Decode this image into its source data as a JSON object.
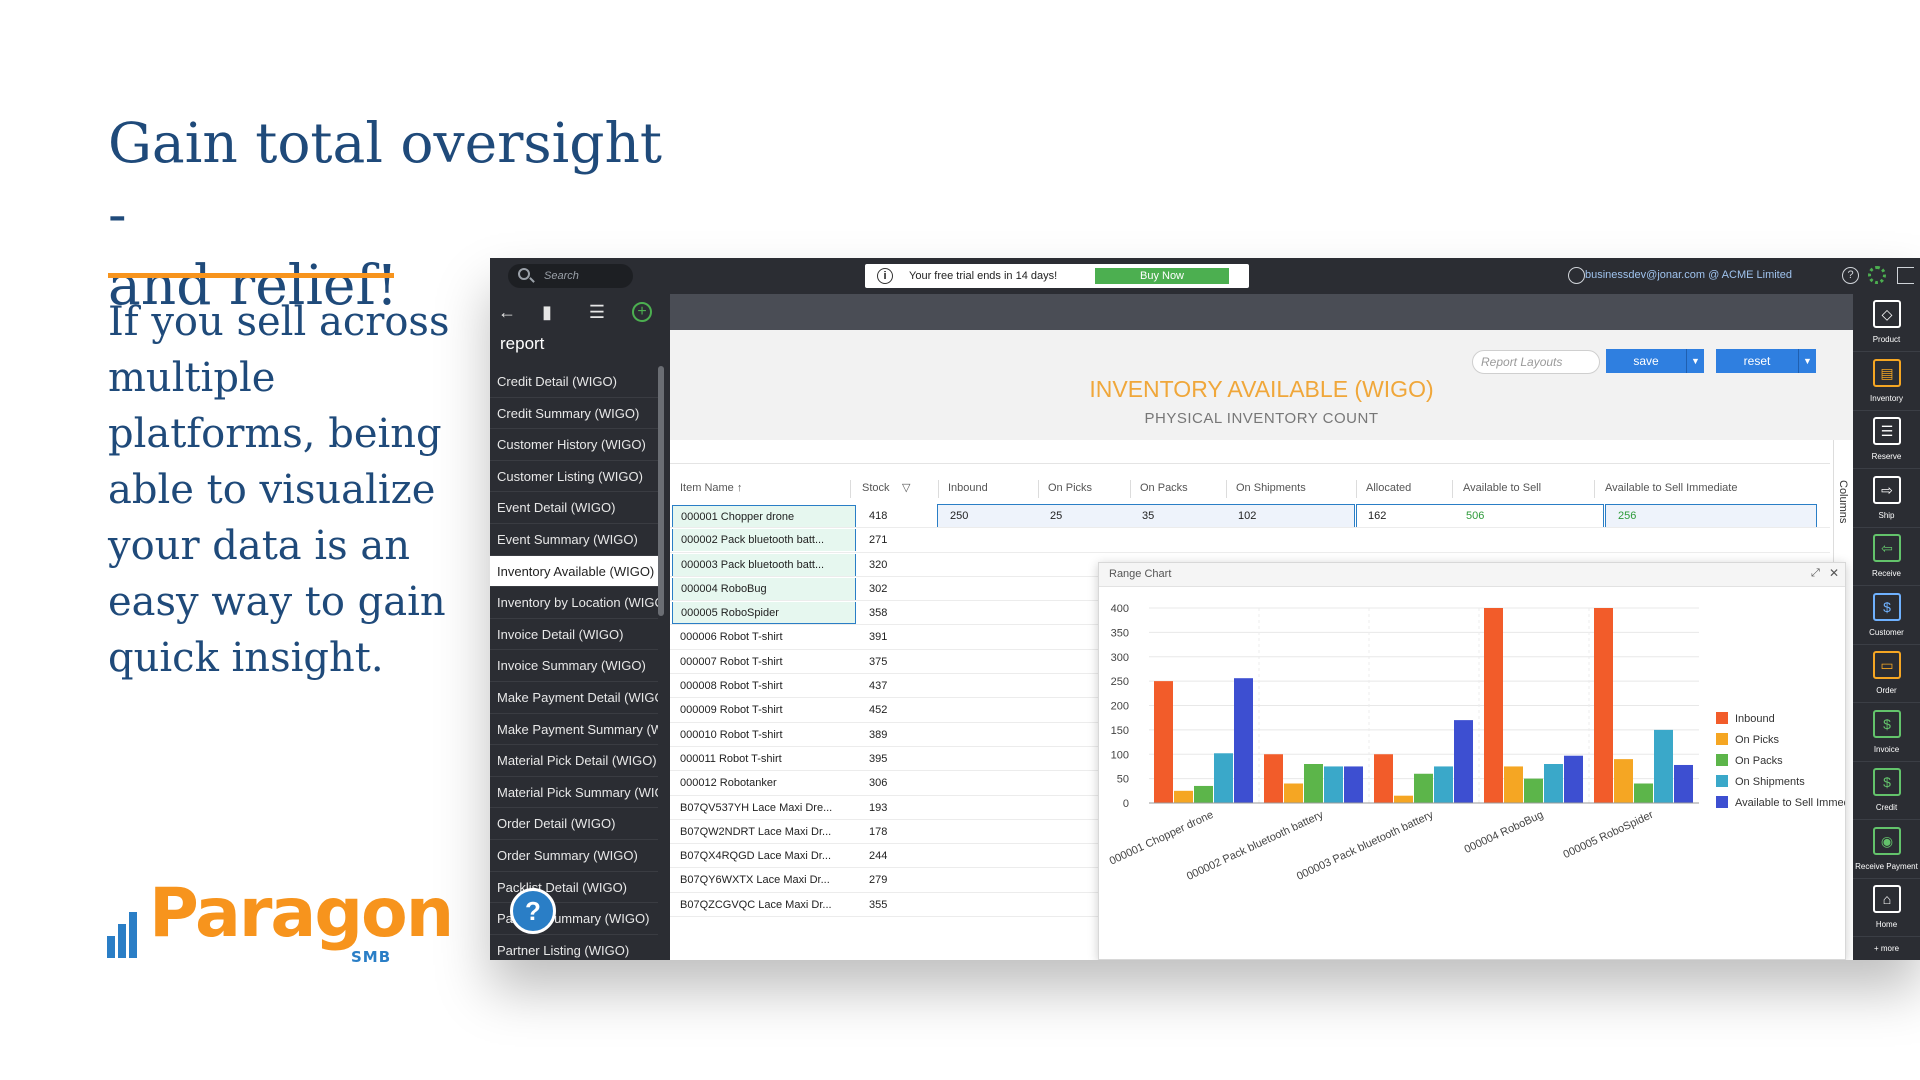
{
  "marketing": {
    "headline_line1": "Gain total oversight -",
    "headline_line2": "and relief!",
    "body": "If you sell across multiple platforms, being able to visualize your data is an easy way to gain quick insight.",
    "logo_text": "Paragon",
    "logo_sub": "SMB"
  },
  "topbar": {
    "search_placeholder": "Search",
    "trial_message": "Your free trial ends in 14 days!",
    "buy_label": "Buy Now",
    "user": "businessdev@jonar.com @ ACME Limited"
  },
  "sidebar": {
    "title": "report",
    "items": [
      {
        "label": "Credit Detail (WIGO)"
      },
      {
        "label": "Credit Summary (WIGO)"
      },
      {
        "label": "Customer History (WIGO)"
      },
      {
        "label": "Customer Listing (WIGO)"
      },
      {
        "label": "Event Detail (WIGO)"
      },
      {
        "label": "Event Summary (WIGO)"
      },
      {
        "label": "Inventory Available (WIGO)"
      },
      {
        "label": "Inventory by Location (WIGO)"
      },
      {
        "label": "Invoice Detail (WIGO)"
      },
      {
        "label": "Invoice Summary (WIGO)"
      },
      {
        "label": "Make Payment Detail (WIGO)"
      },
      {
        "label": "Make Payment Summary (WIGO)"
      },
      {
        "label": "Material Pick Detail (WIGO)"
      },
      {
        "label": "Material Pick Summary (WIGO)"
      },
      {
        "label": "Order Detail (WIGO)"
      },
      {
        "label": "Order Summary (WIGO)"
      },
      {
        "label": "Packlist Detail (WIGO)"
      },
      {
        "label": "Packlist Summary (WIGO)"
      },
      {
        "label": "Partner Listing (WIGO)"
      }
    ]
  },
  "report": {
    "layouts_label": "Report Layouts",
    "save_label": "save",
    "reset_label": "reset",
    "title": "INVENTORY AVAILABLE (WIGO)",
    "subtitle": "PHYSICAL INVENTORY COUNT",
    "columns_label": "Columns",
    "headers": {
      "item": "Item Name ↑",
      "stock": "Stock",
      "inbound": "Inbound",
      "on_picks": "On Picks",
      "on_packs": "On Packs",
      "on_shipments": "On Shipments",
      "allocated": "Allocated",
      "available": "Available to Sell",
      "available_immediate": "Available to Sell Immediate"
    },
    "first_row_detail": {
      "inbound": "250",
      "on_picks": "25",
      "on_packs": "35",
      "on_shipments": "102",
      "allocated": "162",
      "available": "506",
      "available_immediate": "256"
    },
    "rows": [
      {
        "name": "000001 Chopper drone",
        "stock": "418"
      },
      {
        "name": "000002 Pack bluetooth batt...",
        "stock": "271"
      },
      {
        "name": "000003 Pack bluetooth batt...",
        "stock": "320"
      },
      {
        "name": "000004 RoboBug",
        "stock": "302"
      },
      {
        "name": "000005 RoboSpider",
        "stock": "358"
      },
      {
        "name": "000006 Robot T-shirt",
        "stock": "391"
      },
      {
        "name": "000007 Robot T-shirt",
        "stock": "375"
      },
      {
        "name": "000008 Robot T-shirt",
        "stock": "437"
      },
      {
        "name": "000009 Robot T-shirt",
        "stock": "452"
      },
      {
        "name": "000010 Robot T-shirt",
        "stock": "389"
      },
      {
        "name": "000011 Robot T-shirt",
        "stock": "395"
      },
      {
        "name": "000012 Robotanker",
        "stock": "306"
      },
      {
        "name": "B07QV537YH Lace Maxi Dre...",
        "stock": "193"
      },
      {
        "name": "B07QW2NDRT Lace Maxi Dr...",
        "stock": "178"
      },
      {
        "name": "B07QX4RQGD Lace Maxi Dr...",
        "stock": "244"
      },
      {
        "name": "B07QY6WXTX Lace Maxi Dr...",
        "stock": "279"
      },
      {
        "name": "B07QZCGVQC Lace Maxi Dr...",
        "stock": "355"
      }
    ]
  },
  "chart_panel": {
    "title": "Range Chart"
  },
  "chart_data": {
    "type": "bar",
    "categories": [
      "000001 Chopper drone",
      "000002 Pack bluetooth battery",
      "000003 Pack bluetooth battery",
      "000004 RoboBug",
      "000005 RoboSpider"
    ],
    "series": [
      {
        "name": "Inbound",
        "color": "#f25c2a",
        "values": [
          250,
          100,
          100,
          400,
          400
        ]
      },
      {
        "name": "On Picks",
        "color": "#f5a623",
        "values": [
          25,
          40,
          15,
          75,
          90
        ]
      },
      {
        "name": "On Packs",
        "color": "#5cb54a",
        "values": [
          35,
          80,
          60,
          50,
          40
        ]
      },
      {
        "name": "On Shipments",
        "color": "#3aa8c9",
        "values": [
          102,
          75,
          75,
          80,
          150
        ]
      },
      {
        "name": "Available to Sell Immediate",
        "color": "#3d4fd1",
        "values": [
          256,
          75,
          170,
          97,
          78
        ]
      }
    ],
    "ylim": [
      0,
      400
    ],
    "yticks": [
      0,
      50,
      100,
      150,
      200,
      250,
      300,
      350,
      400
    ],
    "grid": true,
    "legend_position": "right"
  },
  "rightbar": {
    "items": [
      {
        "label": "Product",
        "icon": "tag-icon"
      },
      {
        "label": "Inventory",
        "icon": "dolly-icon"
      },
      {
        "label": "Reserve",
        "icon": "clipboard-icon"
      },
      {
        "label": "Ship",
        "icon": "truck-icon"
      },
      {
        "label": "Receive",
        "icon": "truck-receive-icon"
      },
      {
        "label": "Customer",
        "icon": "customer-icon"
      },
      {
        "label": "Order",
        "icon": "box-icon"
      },
      {
        "label": "Invoice",
        "icon": "invoice-icon"
      },
      {
        "label": "Credit",
        "icon": "credit-icon"
      },
      {
        "label": "Receive Payment",
        "icon": "piggy-icon"
      },
      {
        "label": "Home",
        "icon": "home-icon"
      }
    ],
    "more_label": "+ more"
  }
}
